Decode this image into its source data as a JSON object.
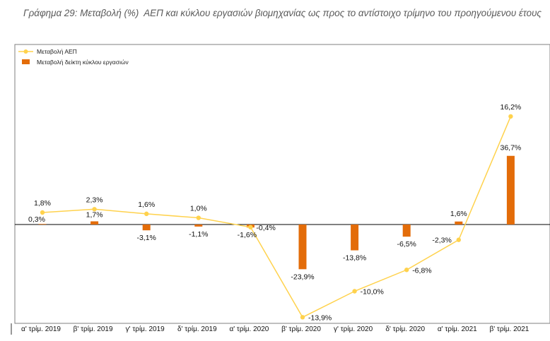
{
  "caption": "Γράφημα 29: Μεταβολή (%)  ΑΕΠ και κύκλου εργασιών βιομηχανίας ως προς το αντίστοιχο τρίμηνο του προηγούμενου έτους",
  "chart_data": {
    "type": "bar+line",
    "title": "Γράφημα 29: Μεταβολή (%)  ΑΕΠ και κύκλου εργασιών βιομηχανίας ως προς το αντίστοιχο τρίμηνο του προηγούμενου έτους",
    "categories": [
      "α' τρίμ. 2019",
      "β' τρίμ. 2019",
      "γ' τρίμ. 2019",
      "δ' τρίμ. 2019",
      "α' τρίμ. 2020",
      "β' τρίμ. 2020",
      "γ' τρίμ. 2020",
      "δ' τρίμ. 2020",
      "α' τρίμ. 2021",
      "β' τρίμ. 2021"
    ],
    "series": [
      {
        "name": "Μεταβολή ΑΕΠ",
        "type": "line",
        "color": "#FFD24D",
        "values": [
          1.8,
          2.3,
          1.6,
          1.0,
          -0.4,
          -13.9,
          -10.0,
          -6.8,
          -2.3,
          16.2
        ],
        "labels": [
          "1,8%",
          "2,3%",
          "1,6%",
          "1,0%",
          "-0,4%",
          "-13,9%",
          "-10,0%",
          "-6,8%",
          "-2,3%",
          "16,2%"
        ]
      },
      {
        "name": "Μεταβολή δείκτη κύκλου εργασιών",
        "type": "bar",
        "color": "#E36C09",
        "values": [
          0.3,
          1.7,
          -3.1,
          -1.1,
          -1.6,
          -23.9,
          -13.8,
          -6.5,
          1.6,
          36.7
        ],
        "labels": [
          "0,3%",
          "1,7%",
          "-3,1%",
          "-1,1%",
          "-1,6%",
          "-23,9%",
          "-13,8%",
          "-6,5%",
          "1,6%",
          "36,7%"
        ]
      }
    ],
    "legend": "top-left",
    "grid": false
  }
}
